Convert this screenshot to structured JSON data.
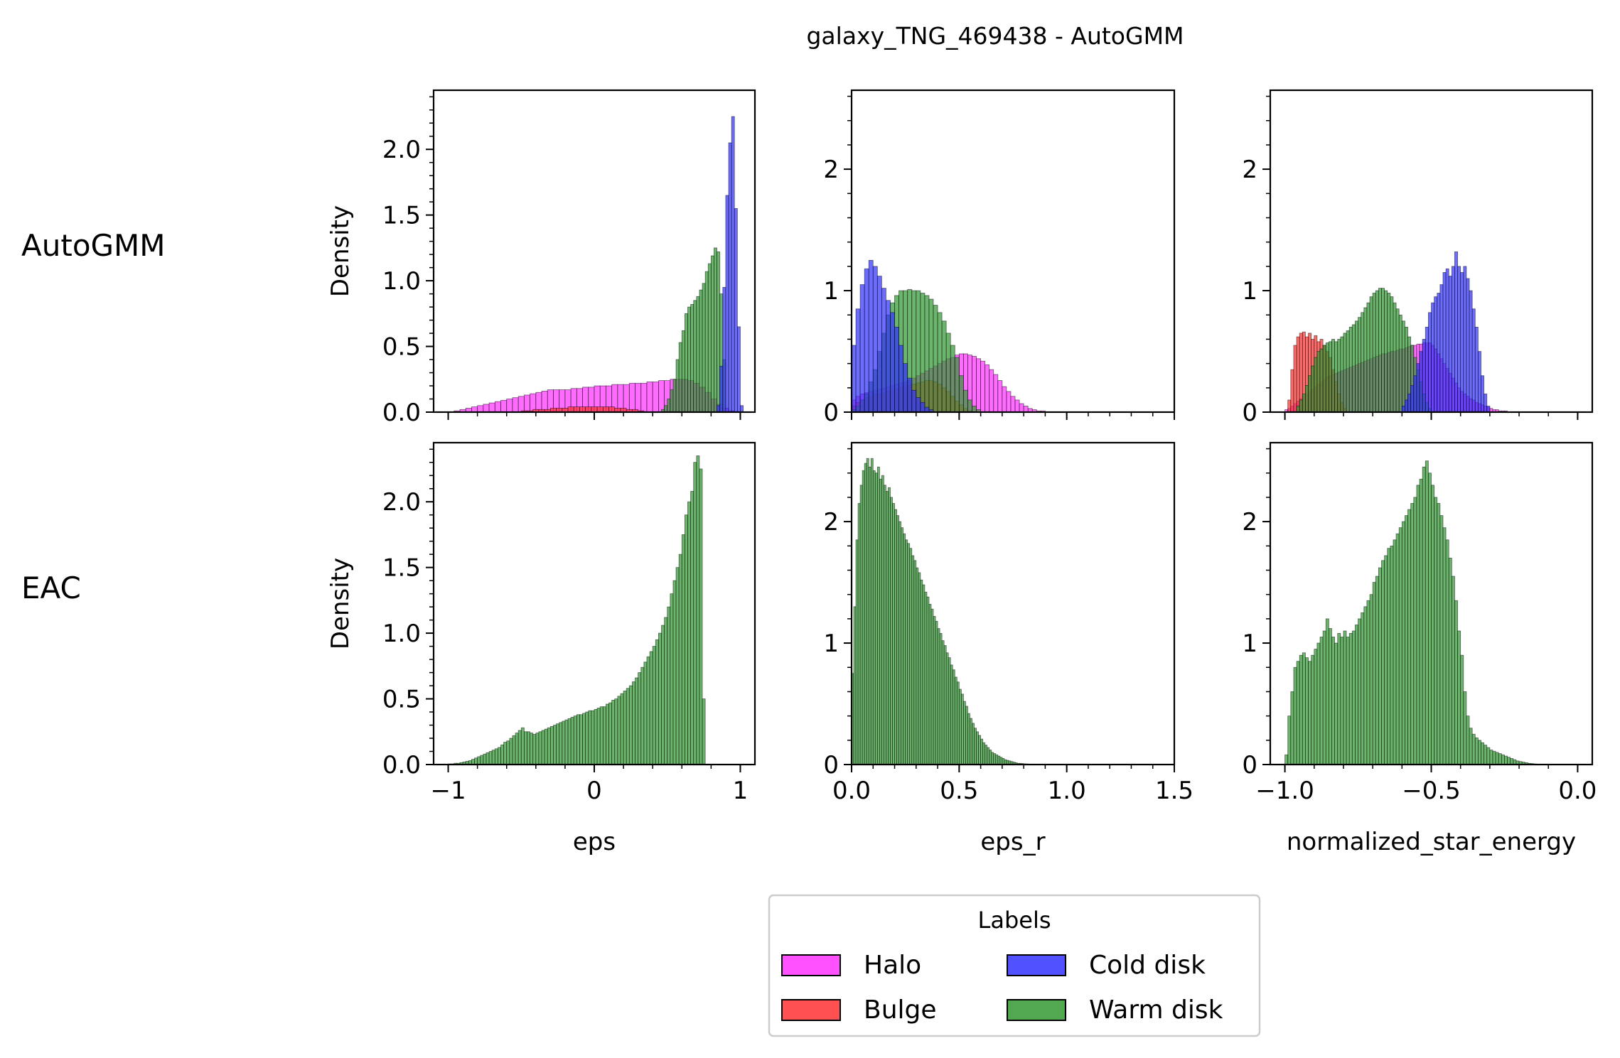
{
  "title": "galaxy_TNG_469438 - AutoGMM",
  "row_labels": [
    "AutoGMM",
    "EAC"
  ],
  "legend": {
    "title": "Labels",
    "items": [
      {
        "name": "Halo",
        "color": "#ff33ff"
      },
      {
        "name": "Cold disk",
        "color": "#3333ff"
      },
      {
        "name": "Bulge",
        "color": "#ff3333"
      },
      {
        "name": "Warm disk",
        "color": "#339933"
      }
    ]
  },
  "chart_data": [
    {
      "type": "bar",
      "row": "AutoGMM",
      "col": 0,
      "xlabel": "",
      "ylabel": "Density",
      "xlim": [
        -1.1,
        1.1
      ],
      "ylim": [
        0,
        2.45
      ],
      "xticks": [
        -1,
        0,
        1
      ],
      "xtick_labels": [],
      "yticks": [
        0,
        0.5,
        1.0,
        1.5,
        2.0
      ],
      "ytick_labels": [
        "0.0",
        "0.5",
        "1.0",
        "1.5",
        "2.0"
      ],
      "series": [
        {
          "name": "Halo",
          "color": "#ff33ff",
          "x_start": -0.96,
          "bin_width": 0.04,
          "values": [
            0.01,
            0.02,
            0.03,
            0.04,
            0.05,
            0.06,
            0.07,
            0.08,
            0.09,
            0.1,
            0.11,
            0.12,
            0.13,
            0.14,
            0.15,
            0.16,
            0.17,
            0.17,
            0.17,
            0.17,
            0.18,
            0.18,
            0.19,
            0.19,
            0.2,
            0.2,
            0.2,
            0.21,
            0.21,
            0.21,
            0.22,
            0.22,
            0.22,
            0.23,
            0.23,
            0.24,
            0.24,
            0.25,
            0.25,
            0.25,
            0.24,
            0.22,
            0.19,
            0.15,
            0.1,
            0.06,
            0.03,
            0.01
          ]
        },
        {
          "name": "Bulge",
          "color": "#ff3333",
          "x_start": -0.5,
          "bin_width": 0.04,
          "values": [
            0.01,
            0.01,
            0.02,
            0.02,
            0.02,
            0.03,
            0.03,
            0.03,
            0.04,
            0.04,
            0.04,
            0.04,
            0.04,
            0.04,
            0.04,
            0.04,
            0.03,
            0.03,
            0.02,
            0.02,
            0.01
          ]
        },
        {
          "name": "Warm disk",
          "color": "#339933",
          "x_start": 0.46,
          "bin_width": 0.02,
          "values": [
            0.02,
            0.05,
            0.1,
            0.17,
            0.25,
            0.4,
            0.53,
            0.62,
            0.75,
            0.8,
            0.82,
            0.85,
            0.88,
            0.93,
            0.98,
            1.07,
            1.13,
            1.19,
            1.25,
            1.22,
            0.9,
            0.4
          ]
        },
        {
          "name": "Cold disk",
          "color": "#3333ff",
          "x_start": 0.84,
          "bin_width": 0.02,
          "values": [
            0.05,
            0.35,
            0.95,
            1.65,
            2.05,
            2.25,
            1.55,
            0.65,
            0.05
          ]
        }
      ]
    },
    {
      "type": "bar",
      "row": "AutoGMM",
      "col": 1,
      "xlabel": "",
      "ylabel": "",
      "xlim": [
        0,
        1.5
      ],
      "ylim": [
        0,
        2.65
      ],
      "xticks": [
        0,
        0.5,
        1.0,
        1.5
      ],
      "xtick_labels": [],
      "yticks": [
        0,
        1,
        2
      ],
      "ytick_labels": [
        "0",
        "1",
        "2"
      ],
      "series": [
        {
          "name": "Halo",
          "color": "#ff33ff",
          "x_start": 0.0,
          "bin_width": 0.02,
          "values": [
            0.1,
            0.13,
            0.15,
            0.16,
            0.17,
            0.18,
            0.19,
            0.2,
            0.21,
            0.22,
            0.23,
            0.24,
            0.25,
            0.26,
            0.28,
            0.3,
            0.32,
            0.34,
            0.36,
            0.38,
            0.4,
            0.42,
            0.44,
            0.45,
            0.47,
            0.48,
            0.48,
            0.47,
            0.46,
            0.44,
            0.42,
            0.39,
            0.35,
            0.31,
            0.26,
            0.21,
            0.17,
            0.13,
            0.1,
            0.07,
            0.05,
            0.03,
            0.02,
            0.01,
            0.01
          ]
        },
        {
          "name": "Bulge",
          "color": "#ff3333",
          "x_start": 0.0,
          "bin_width": 0.02,
          "values": [
            0.05,
            0.08,
            0.1,
            0.12,
            0.13,
            0.14,
            0.15,
            0.16,
            0.17,
            0.18,
            0.19,
            0.2,
            0.21,
            0.22,
            0.23,
            0.24,
            0.25,
            0.26,
            0.26,
            0.25,
            0.23,
            0.2,
            0.17,
            0.13,
            0.09,
            0.06,
            0.03,
            0.01
          ]
        },
        {
          "name": "Warm disk",
          "color": "#339933",
          "x_start": 0.0,
          "bin_width": 0.02,
          "values": [
            0.02,
            0.05,
            0.1,
            0.15,
            0.25,
            0.35,
            0.5,
            0.65,
            0.8,
            0.9,
            0.96,
            1.0,
            1.0,
            1.01,
            1.0,
            1.0,
            0.98,
            0.96,
            0.93,
            0.88,
            0.82,
            0.75,
            0.65,
            0.55,
            0.45,
            0.3,
            0.18,
            0.1,
            0.05,
            0.02
          ]
        },
        {
          "name": "Cold disk",
          "color": "#3333ff",
          "x_start": 0.0,
          "bin_width": 0.02,
          "values": [
            0.55,
            0.85,
            1.05,
            1.18,
            1.25,
            1.2,
            1.12,
            1.02,
            0.92,
            0.82,
            0.7,
            0.55,
            0.4,
            0.28,
            0.18,
            0.12,
            0.08,
            0.04,
            0.02
          ]
        }
      ]
    },
    {
      "type": "bar",
      "row": "AutoGMM",
      "col": 2,
      "xlabel": "",
      "ylabel": "",
      "xlim": [
        -1.05,
        0.05
      ],
      "ylim": [
        0,
        2.65
      ],
      "xticks": [
        -1.0,
        -0.5,
        0.0
      ],
      "xtick_labels": [],
      "yticks": [
        0,
        1,
        2
      ],
      "ytick_labels": [
        "0",
        "1",
        "2"
      ],
      "series": [
        {
          "name": "Halo",
          "color": "#ff33ff",
          "x_start": -1.0,
          "bin_width": 0.01,
          "values": [
            0.02,
            0.03,
            0.05,
            0.07,
            0.09,
            0.11,
            0.13,
            0.15,
            0.17,
            0.19,
            0.21,
            0.23,
            0.25,
            0.27,
            0.29,
            0.3,
            0.31,
            0.32,
            0.33,
            0.34,
            0.35,
            0.36,
            0.37,
            0.38,
            0.39,
            0.4,
            0.41,
            0.42,
            0.43,
            0.44,
            0.45,
            0.46,
            0.47,
            0.48,
            0.48,
            0.49,
            0.5,
            0.5,
            0.51,
            0.52,
            0.52,
            0.53,
            0.54,
            0.55,
            0.55,
            0.56,
            0.56,
            0.57,
            0.57,
            0.57,
            0.55,
            0.52,
            0.48,
            0.44,
            0.4,
            0.36,
            0.32,
            0.28,
            0.24,
            0.2,
            0.17,
            0.15,
            0.13,
            0.11,
            0.1,
            0.08,
            0.07,
            0.06,
            0.05,
            0.04,
            0.03,
            0.02,
            0.02,
            0.01,
            0.01,
            0.01
          ]
        },
        {
          "name": "Bulge",
          "color": "#ff3333",
          "x_start": -0.99,
          "bin_width": 0.01,
          "values": [
            0.1,
            0.35,
            0.55,
            0.62,
            0.65,
            0.66,
            0.62,
            0.65,
            0.6,
            0.63,
            0.58,
            0.6,
            0.55,
            0.5,
            0.45,
            0.35,
            0.25,
            0.15,
            0.08,
            0.03
          ]
        },
        {
          "name": "Warm disk",
          "color": "#339933",
          "x_start": -0.96,
          "bin_width": 0.01,
          "values": [
            0.05,
            0.1,
            0.15,
            0.22,
            0.3,
            0.38,
            0.45,
            0.5,
            0.52,
            0.55,
            0.57,
            0.58,
            0.6,
            0.58,
            0.6,
            0.62,
            0.65,
            0.67,
            0.7,
            0.72,
            0.75,
            0.78,
            0.82,
            0.86,
            0.9,
            0.95,
            0.98,
            1.0,
            1.02,
            1.02,
            1.0,
            0.98,
            0.95,
            0.9,
            0.85,
            0.8,
            0.75,
            0.7,
            0.62,
            0.55,
            0.45,
            0.35,
            0.25,
            0.15,
            0.08,
            0.03
          ]
        },
        {
          "name": "Cold disk",
          "color": "#3333ff",
          "x_start": -0.6,
          "bin_width": 0.01,
          "values": [
            0.05,
            0.1,
            0.15,
            0.22,
            0.3,
            0.4,
            0.5,
            0.6,
            0.7,
            0.82,
            0.9,
            0.95,
            0.98,
            1.05,
            1.15,
            1.18,
            1.12,
            1.2,
            1.32,
            1.2,
            1.15,
            1.2,
            1.1,
            1.0,
            0.85,
            0.7,
            0.5,
            0.3,
            0.15,
            0.05
          ]
        }
      ]
    },
    {
      "type": "bar",
      "row": "EAC",
      "col": 0,
      "xlabel": "eps",
      "ylabel": "Density",
      "xlim": [
        -1.1,
        1.1
      ],
      "ylim": [
        0,
        2.45
      ],
      "xticks": [
        -1,
        0,
        1
      ],
      "xtick_labels": [
        "−1",
        "0",
        "1"
      ],
      "yticks": [
        0,
        0.5,
        1.0,
        1.5,
        2.0
      ],
      "ytick_labels": [
        "0.0",
        "0.5",
        "1.0",
        "1.5",
        "2.0"
      ],
      "series": [
        {
          "name": "Warm disk",
          "color": "#339933",
          "x_start": -1.0,
          "bin_width": 0.02,
          "values": [
            0.005,
            0.005,
            0.01,
            0.01,
            0.015,
            0.02,
            0.025,
            0.03,
            0.04,
            0.05,
            0.06,
            0.07,
            0.08,
            0.09,
            0.1,
            0.11,
            0.12,
            0.13,
            0.15,
            0.17,
            0.18,
            0.2,
            0.22,
            0.24,
            0.26,
            0.28,
            0.25,
            0.25,
            0.24,
            0.23,
            0.24,
            0.25,
            0.26,
            0.27,
            0.28,
            0.29,
            0.3,
            0.31,
            0.32,
            0.33,
            0.34,
            0.35,
            0.36,
            0.37,
            0.38,
            0.38,
            0.39,
            0.4,
            0.41,
            0.41,
            0.42,
            0.43,
            0.44,
            0.44,
            0.46,
            0.47,
            0.49,
            0.5,
            0.52,
            0.54,
            0.56,
            0.58,
            0.6,
            0.63,
            0.66,
            0.7,
            0.74,
            0.78,
            0.82,
            0.86,
            0.9,
            0.95,
            1.0,
            1.06,
            1.12,
            1.2,
            1.3,
            1.4,
            1.5,
            1.6,
            1.75,
            1.9,
            2.0,
            2.08,
            2.3,
            2.35,
            2.25,
            0.5
          ]
        }
      ]
    },
    {
      "type": "bar",
      "row": "EAC",
      "col": 1,
      "xlabel": "eps_r",
      "ylabel": "",
      "xlim": [
        0,
        1.5
      ],
      "ylim": [
        0,
        2.65
      ],
      "xticks": [
        0,
        0.5,
        1.0,
        1.5
      ],
      "xtick_labels": [
        "0.0",
        "0.5",
        "1.0",
        "1.5"
      ],
      "yticks": [
        0,
        1,
        2
      ],
      "ytick_labels": [
        "0",
        "1",
        "2"
      ],
      "series": [
        {
          "name": "Warm disk",
          "color": "#339933",
          "x_start": 0.0,
          "bin_width": 0.01,
          "values": [
            0.75,
            1.3,
            1.85,
            2.15,
            2.3,
            2.42,
            2.48,
            2.52,
            2.45,
            2.52,
            2.42,
            2.4,
            2.45,
            2.35,
            2.38,
            2.3,
            2.25,
            2.28,
            2.2,
            2.15,
            2.1,
            2.05,
            2.0,
            1.95,
            1.9,
            1.85,
            1.82,
            1.78,
            1.72,
            1.68,
            1.62,
            1.58,
            1.52,
            1.48,
            1.42,
            1.38,
            1.32,
            1.28,
            1.22,
            1.18,
            1.12,
            1.08,
            1.02,
            0.98,
            0.92,
            0.88,
            0.82,
            0.78,
            0.72,
            0.68,
            0.62,
            0.58,
            0.52,
            0.48,
            0.42,
            0.38,
            0.34,
            0.3,
            0.27,
            0.24,
            0.21,
            0.18,
            0.16,
            0.14,
            0.12,
            0.1,
            0.09,
            0.08,
            0.07,
            0.06,
            0.05,
            0.04,
            0.035,
            0.03,
            0.025,
            0.02,
            0.015,
            0.01,
            0.01,
            0.008,
            0.006,
            0.005,
            0.004,
            0.003,
            0.002,
            0.002,
            0.001
          ]
        }
      ]
    },
    {
      "type": "bar",
      "row": "EAC",
      "col": 2,
      "xlabel": "normalized_star_energy",
      "ylabel": "",
      "xlim": [
        -1.05,
        0.05
      ],
      "ylim": [
        0,
        2.65
      ],
      "xticks": [
        -1.0,
        -0.5,
        0.0
      ],
      "xtick_labels": [
        "−1.0",
        "−0.5",
        "0.0"
      ],
      "yticks": [
        0,
        1,
        2
      ],
      "ytick_labels": [
        "0",
        "1",
        "2"
      ],
      "series": [
        {
          "name": "Warm disk",
          "color": "#339933",
          "x_start": -1.0,
          "bin_width": 0.01,
          "values": [
            0.08,
            0.4,
            0.6,
            0.8,
            0.85,
            0.9,
            0.92,
            0.88,
            0.85,
            0.9,
            0.95,
            1.0,
            1.05,
            1.1,
            1.2,
            1.12,
            1.05,
            1.0,
            1.08,
            1.05,
            1.1,
            1.05,
            1.08,
            1.1,
            1.15,
            1.2,
            1.25,
            1.3,
            1.35,
            1.4,
            1.5,
            1.55,
            1.62,
            1.68,
            1.72,
            1.78,
            1.8,
            1.85,
            1.9,
            1.95,
            2.0,
            2.05,
            2.1,
            2.15,
            2.2,
            2.3,
            2.35,
            2.45,
            2.5,
            2.4,
            2.3,
            2.2,
            2.15,
            2.05,
            1.95,
            1.85,
            1.7,
            1.55,
            1.35,
            1.1,
            0.9,
            0.6,
            0.4,
            0.3,
            0.25,
            0.22,
            0.2,
            0.18,
            0.16,
            0.14,
            0.12,
            0.11,
            0.1,
            0.09,
            0.08,
            0.07,
            0.06,
            0.05,
            0.04,
            0.03,
            0.025,
            0.02,
            0.015,
            0.01,
            0.008,
            0.005,
            0.003
          ]
        }
      ]
    }
  ]
}
